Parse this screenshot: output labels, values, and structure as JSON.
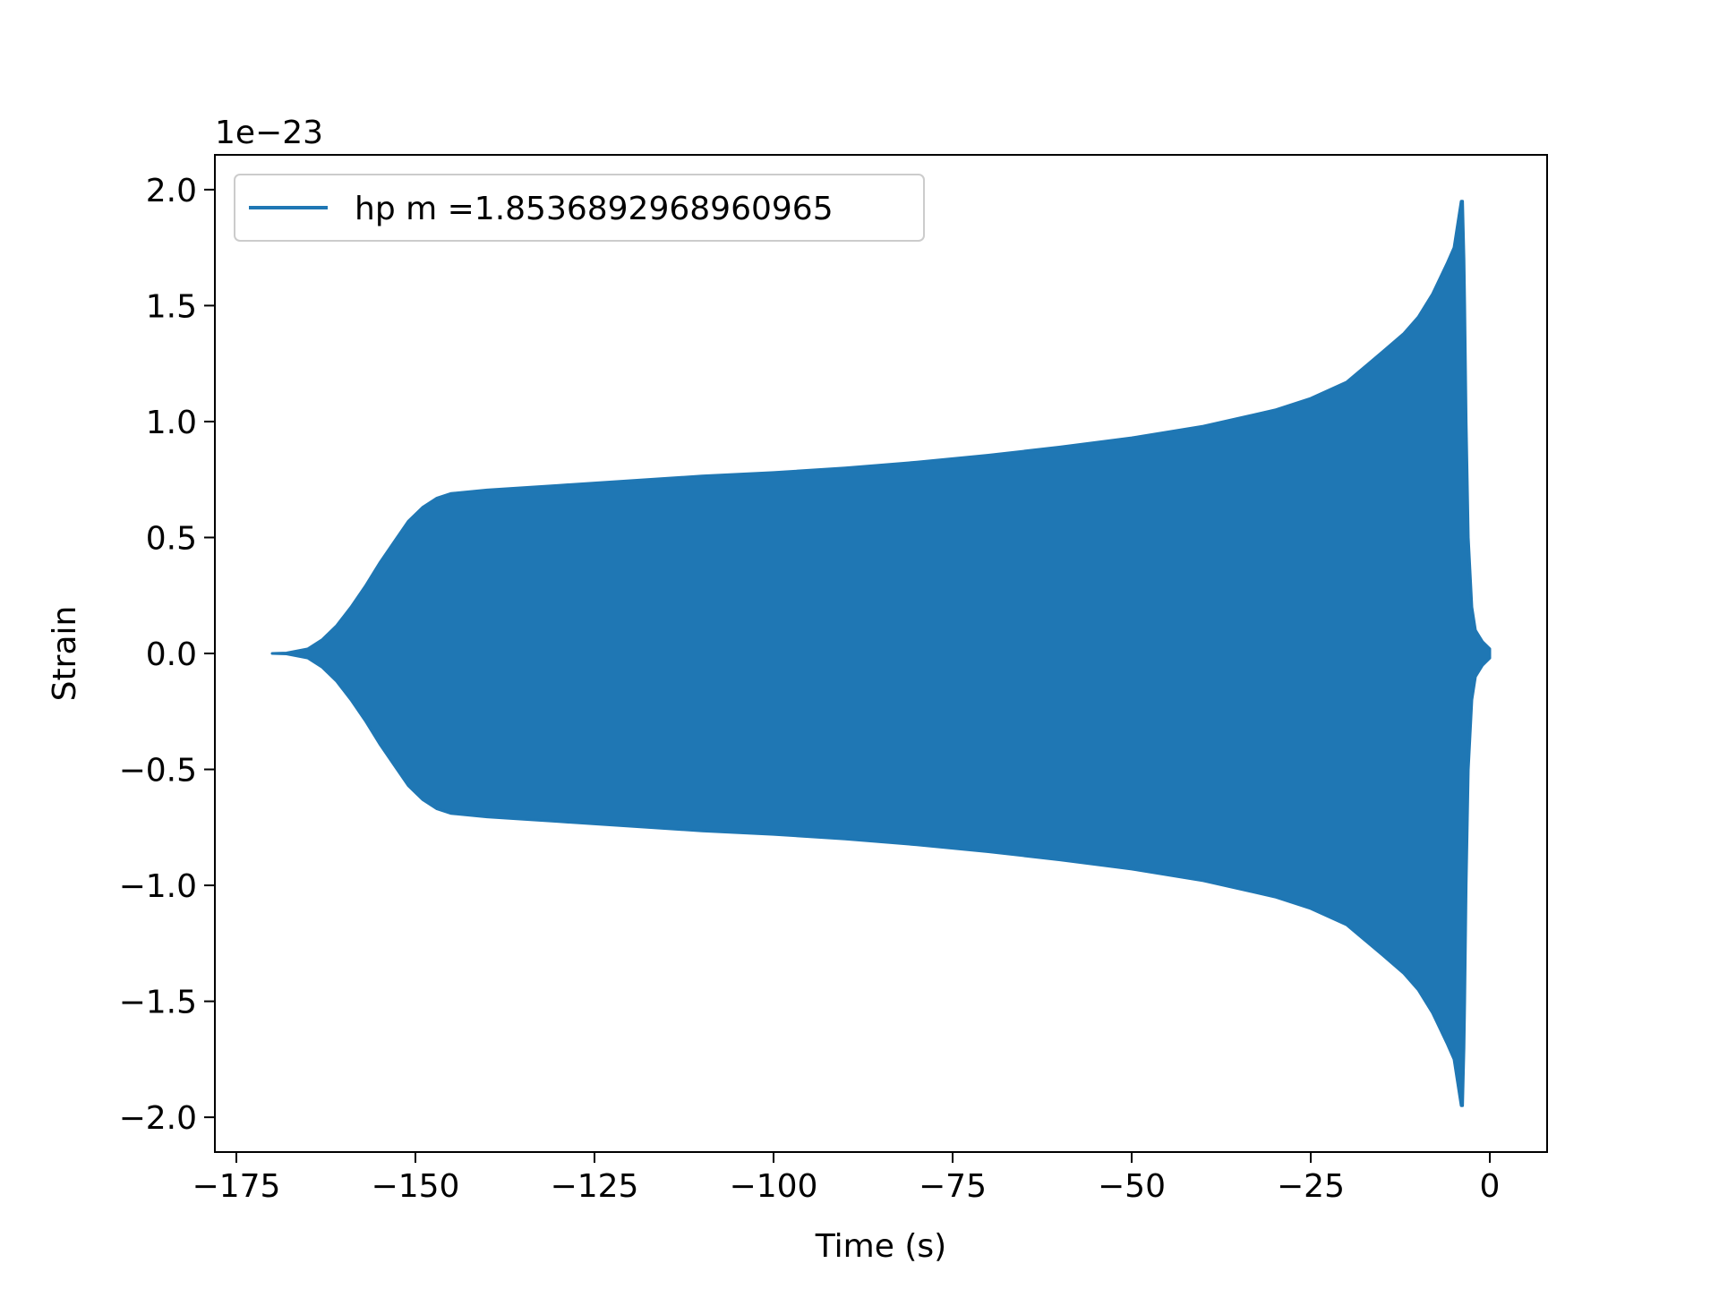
{
  "chart_data": {
    "type": "line",
    "title": "",
    "xlabel": "Time (s)",
    "ylabel": "Strain",
    "offset_text": "1e−23",
    "xlim": [
      -178,
      8
    ],
    "ylim": [
      -2.15,
      2.15
    ],
    "xticks": [
      -175,
      -150,
      -125,
      -100,
      -75,
      -50,
      -25,
      0
    ],
    "xtick_labels": [
      "−175",
      "−150",
      "−125",
      "−100",
      "−75",
      "−50",
      "−25",
      "0"
    ],
    "yticks": [
      -2.0,
      -1.5,
      -1.0,
      -0.5,
      0.0,
      0.5,
      1.0,
      1.5,
      2.0
    ],
    "ytick_labels": [
      "−2.0",
      "−1.5",
      "−1.0",
      "−0.5",
      "0.0",
      "0.5",
      "1.0",
      "1.5",
      "2.0"
    ],
    "grid": false,
    "legend": {
      "position": "top-left"
    },
    "series": [
      {
        "name": "hp m =1.8536892968960965",
        "color": "#1f77b4",
        "kind": "oscillating-envelope",
        "envelope": {
          "t": [
            -170,
            -168,
            -165,
            -163,
            -161,
            -159,
            -157,
            -155,
            -153,
            -151,
            -149,
            -147,
            -145,
            -140,
            -130,
            -120,
            -110,
            -100,
            -90,
            -80,
            -70,
            -60,
            -50,
            -40,
            -30,
            -25,
            -20,
            -15,
            -12,
            -10,
            -8,
            -6,
            -5,
            -4.5,
            -4,
            -3.8,
            -3.6,
            -3.5,
            -3.3,
            -3.0,
            -2.5,
            -2.0,
            -1.0,
            0
          ],
          "amplitude": [
            0.0,
            0.002,
            0.02,
            0.06,
            0.12,
            0.2,
            0.29,
            0.39,
            0.48,
            0.57,
            0.63,
            0.67,
            0.69,
            0.705,
            0.725,
            0.745,
            0.765,
            0.78,
            0.8,
            0.825,
            0.855,
            0.89,
            0.93,
            0.98,
            1.05,
            1.1,
            1.17,
            1.3,
            1.38,
            1.45,
            1.55,
            1.68,
            1.75,
            1.85,
            1.95,
            1.95,
            1.7,
            1.5,
            1.0,
            0.5,
            0.2,
            0.1,
            0.05,
            0.02
          ]
        }
      }
    ]
  }
}
